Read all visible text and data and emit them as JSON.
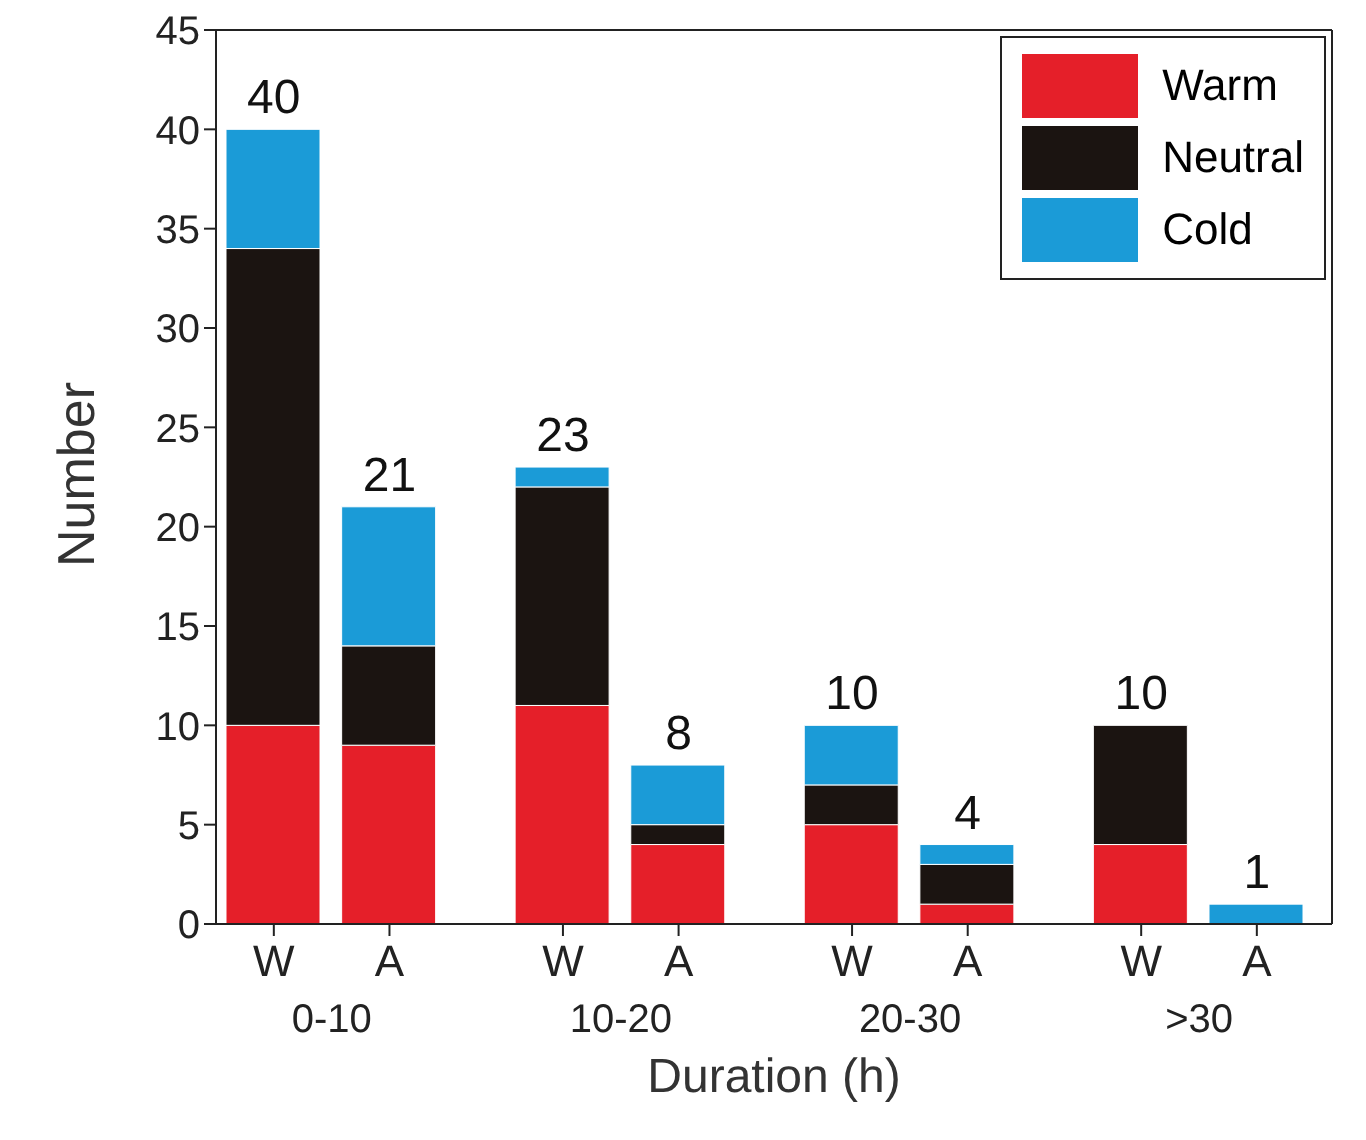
{
  "chart_data": {
    "type": "bar",
    "stacked": true,
    "xlabel": "Duration (h)",
    "ylabel": "Number",
    "categories": [
      "W",
      "A",
      "W",
      "A",
      "W",
      "A",
      "W",
      "A"
    ],
    "annotations": [
      "0-10",
      "10-20",
      "20-30",
      ">30"
    ],
    "series": [
      {
        "name": "Warm",
        "color": "#e51f29",
        "values": [
          10,
          9,
          11,
          4,
          5,
          1,
          4,
          0
        ]
      },
      {
        "name": "Neutral",
        "color": "#1b1411",
        "values": [
          24,
          5,
          11,
          1,
          2,
          2,
          6,
          0
        ]
      },
      {
        "name": "Cold",
        "color": "#1b9bd7",
        "values": [
          6,
          7,
          1,
          3,
          3,
          1,
          0,
          1
        ]
      }
    ],
    "totals": [
      "40",
      "21",
      "23",
      "8",
      "10",
      "4",
      "10",
      "1"
    ],
    "ylim": [
      0,
      45
    ],
    "yticks": [
      0,
      5,
      10,
      15,
      20,
      25,
      30,
      35,
      40,
      45
    ],
    "grid": false,
    "legend": "top right"
  }
}
